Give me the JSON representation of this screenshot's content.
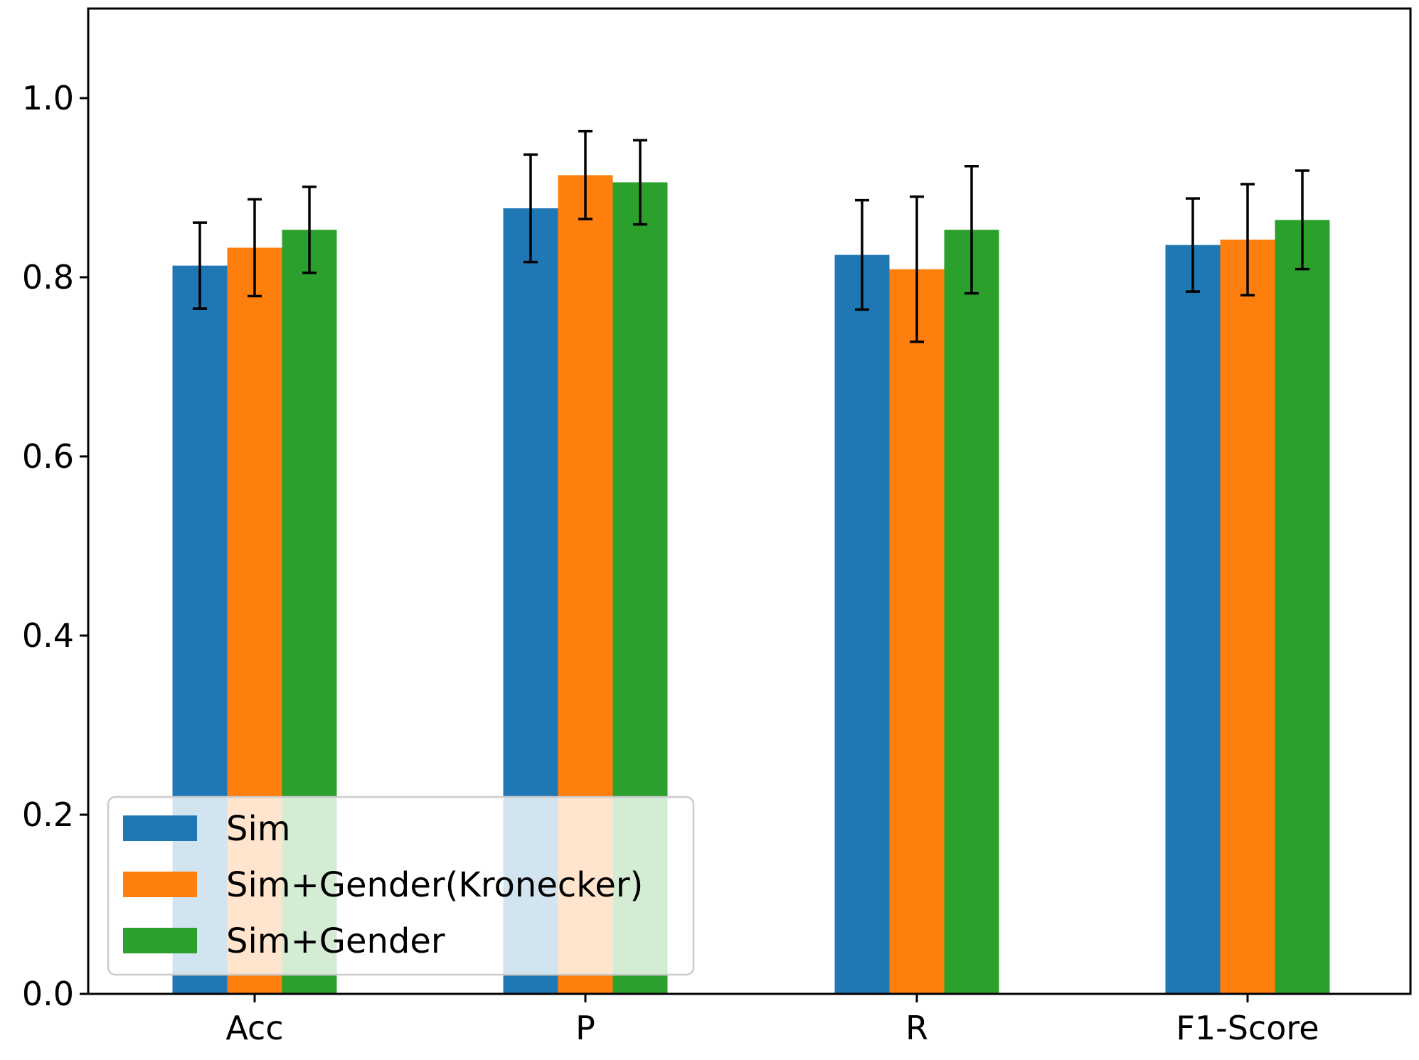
{
  "chart_data": {
    "type": "bar",
    "title": "",
    "xlabel": "",
    "ylabel": "",
    "ylim": [
      0.0,
      1.1
    ],
    "yticks": [
      0.0,
      0.2,
      0.4,
      0.6,
      0.8,
      1.0
    ],
    "ytick_labels": [
      "0.0",
      "0.2",
      "0.4",
      "0.6",
      "0.8",
      "1.0"
    ],
    "categories": [
      "Acc",
      "P",
      "R",
      "F1-Score"
    ],
    "series": [
      {
        "name": "Sim",
        "color": "#1f77b4",
        "values": [
          0.813,
          0.877,
          0.825,
          0.836
        ],
        "errors": [
          0.048,
          0.06,
          0.061,
          0.052
        ]
      },
      {
        "name": "Sim+Gender(Kronecker)",
        "color": "#ff7f0e",
        "values": [
          0.833,
          0.914,
          0.809,
          0.842
        ],
        "errors": [
          0.054,
          0.049,
          0.081,
          0.062
        ]
      },
      {
        "name": "Sim+Gender",
        "color": "#2ca02c",
        "values": [
          0.853,
          0.906,
          0.853,
          0.864
        ],
        "errors": [
          0.048,
          0.047,
          0.071,
          0.055
        ]
      }
    ],
    "grid": false,
    "legend_position": "lower-left"
  }
}
